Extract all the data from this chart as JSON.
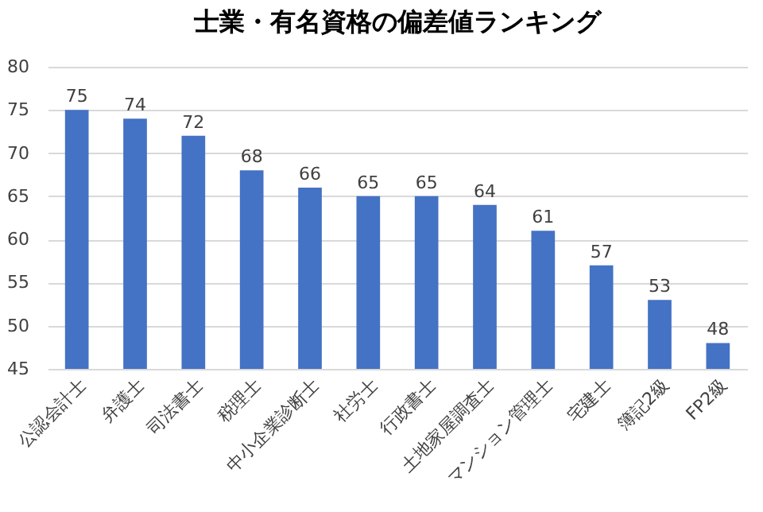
{
  "chart_data": {
    "type": "bar",
    "title": "士業・有名資格の偏差値ランキング",
    "categories": [
      "公認会計士",
      "弁護士",
      "司法書士",
      "税理士",
      "中小企業診断士",
      "社労士",
      "行政書士",
      "土地家屋調査士",
      "マンション管理士",
      "宅建士",
      "簿記2級",
      "FP2級"
    ],
    "values": [
      75,
      74,
      72,
      68,
      66,
      65,
      65,
      64,
      61,
      57,
      53,
      48
    ],
    "color": "#4472c4",
    "ylim": [
      45,
      80
    ],
    "yticks": [
      45,
      50,
      55,
      60,
      65,
      70,
      75,
      80
    ],
    "grid": "y",
    "data_labels": true
  }
}
